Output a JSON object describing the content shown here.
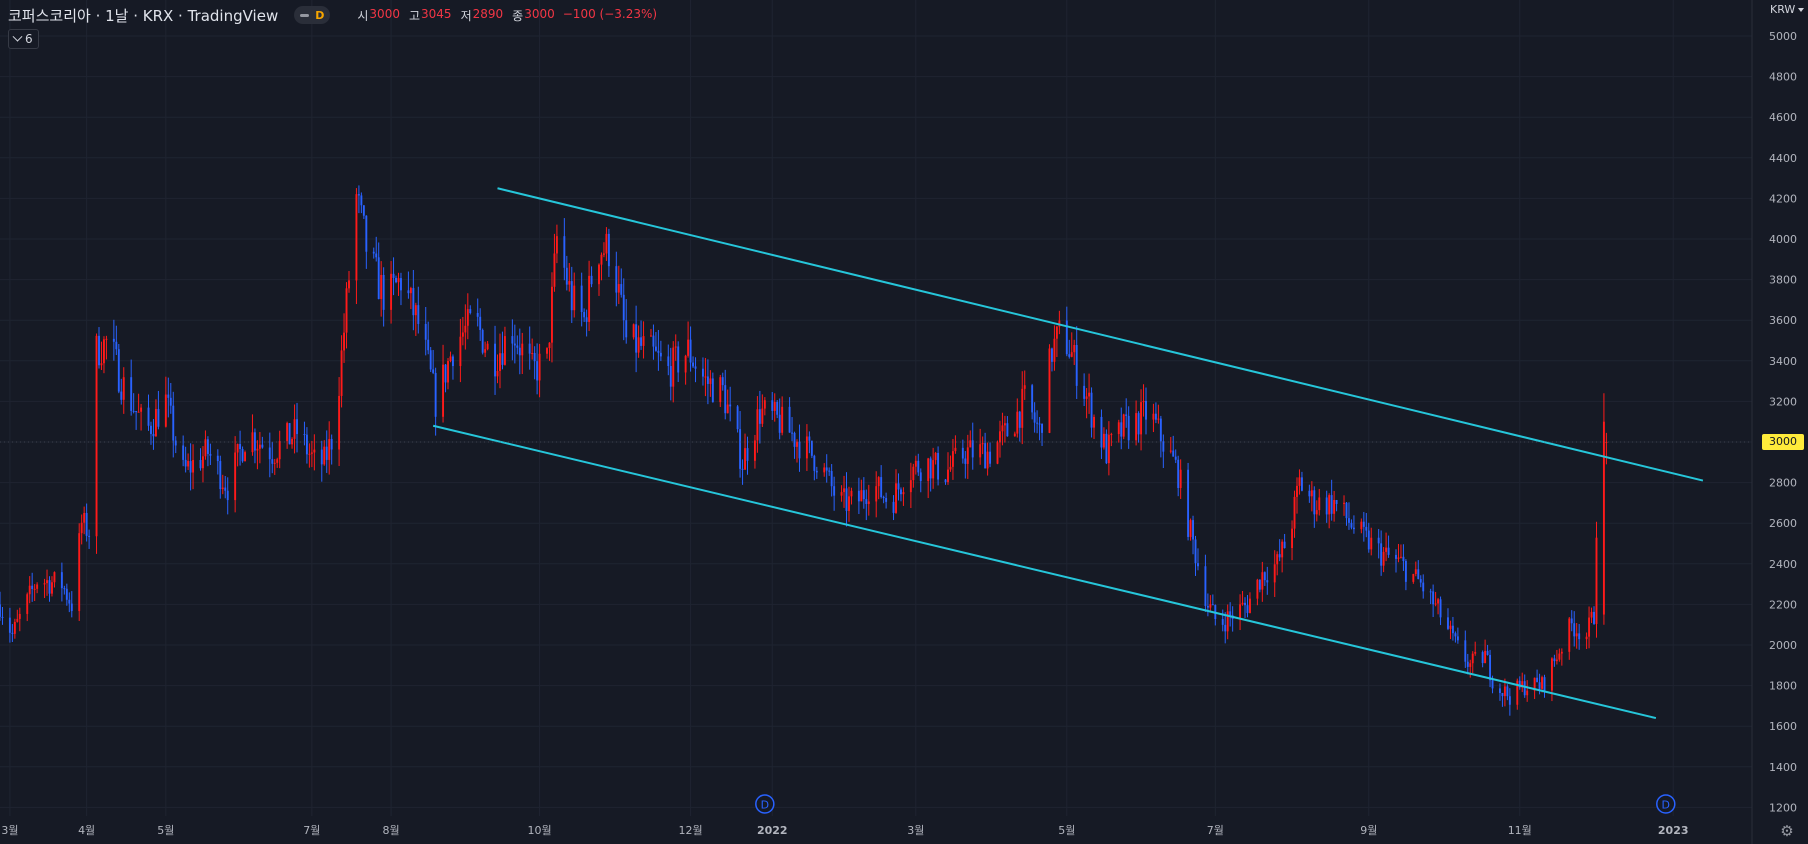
{
  "header": {
    "title": "코퍼스코리아 · 1날 · KRX · TradingView",
    "interval_badge": "D",
    "ohlc": {
      "open_label": "시",
      "open": "3000",
      "high_label": "고",
      "high": "3045",
      "low_label": "저",
      "low": "2890",
      "close_label": "종",
      "close": "3000",
      "change": "−100 (−3.23%)"
    }
  },
  "indicators_button": {
    "label": "6"
  },
  "axis": {
    "currency": "KRW",
    "last_price_label": "3000"
  },
  "colors": {
    "background": "#161a25",
    "grid": "#1f2431",
    "up_candle": "#ff1a1a",
    "down_candle": "#2962ff",
    "channel_line": "#26c6da",
    "last_price": "#ffeb3b"
  },
  "chart_data": {
    "type": "candlestick",
    "title": "코퍼스코리아 · 1날 · KRX · TradingView",
    "xlabel": "",
    "ylabel": "",
    "ylim": [
      1150,
      5050
    ],
    "y_ticks": [
      1200,
      1400,
      1600,
      1800,
      2000,
      2200,
      2400,
      2600,
      2800,
      3000,
      3200,
      3400,
      3600,
      3800,
      4000,
      4200,
      4400,
      4600,
      4800,
      5000
    ],
    "x_ticks": [
      {
        "label": "3월",
        "date": "2021-03-01"
      },
      {
        "label": "4월",
        "date": "2021-04-01"
      },
      {
        "label": "5월",
        "date": "2021-05-03"
      },
      {
        "label": "7월",
        "date": "2021-07-01"
      },
      {
        "label": "8월",
        "date": "2021-08-02"
      },
      {
        "label": "10월",
        "date": "2021-10-01"
      },
      {
        "label": "12월",
        "date": "2021-12-01"
      },
      {
        "label": "2022",
        "date": "2022-01-03"
      },
      {
        "label": "3월",
        "date": "2022-03-02"
      },
      {
        "label": "5월",
        "date": "2022-05-02"
      },
      {
        "label": "7월",
        "date": "2022-07-01"
      },
      {
        "label": "9월",
        "date": "2022-09-01"
      },
      {
        "label": "11월",
        "date": "2022-11-01"
      },
      {
        "label": "2023",
        "date": "2023-01-02"
      }
    ],
    "x_range": [
      "2021-02-25",
      "2023-01-31"
    ],
    "dividend_markers": [
      {
        "label": "D",
        "date": "2021-12-31"
      },
      {
        "label": "D",
        "date": "2022-12-30"
      }
    ],
    "channel_lines": [
      {
        "name": "",
        "from": {
          "date": "2021-09-14",
          "price": 4250
        },
        "to": {
          "date": "2023-01-14",
          "price": 2810
        }
      },
      {
        "name": "",
        "from": {
          "date": "2021-08-19",
          "price": 3080
        },
        "to": {
          "date": "2022-12-26",
          "price": 1640
        }
      }
    ],
    "price_path": [
      [
        "2021-02-25",
        2200
      ],
      [
        "2021-03-02",
        2050
      ],
      [
        "2021-03-12",
        2320
      ],
      [
        "2021-03-22",
        2300
      ],
      [
        "2021-03-26",
        2200
      ],
      [
        "2021-03-30",
        2600
      ],
      [
        "2021-04-02",
        2560
      ],
      [
        "2021-04-05",
        3450
      ],
      [
        "2021-04-10",
        3500
      ],
      [
        "2021-04-15",
        3300
      ],
      [
        "2021-04-25",
        3050
      ],
      [
        "2021-05-03",
        3200
      ],
      [
        "2021-05-10",
        2850
      ],
      [
        "2021-05-20",
        2950
      ],
      [
        "2021-05-28",
        2780
      ],
      [
        "2021-06-05",
        3050
      ],
      [
        "2021-06-15",
        2950
      ],
      [
        "2021-06-25",
        3050
      ],
      [
        "2021-07-02",
        2900
      ],
      [
        "2021-07-06",
        2900
      ],
      [
        "2021-07-10",
        3050
      ],
      [
        "2021-07-14",
        3550
      ],
      [
        "2021-07-19",
        4200
      ],
      [
        "2021-07-24",
        3900
      ],
      [
        "2021-07-31",
        3700
      ],
      [
        "2021-08-06",
        3800
      ],
      [
        "2021-08-14",
        3550
      ],
      [
        "2021-08-20",
        3200
      ],
      [
        "2021-08-28",
        3500
      ],
      [
        "2021-09-05",
        3600
      ],
      [
        "2021-09-12",
        3400
      ],
      [
        "2021-09-20",
        3550
      ],
      [
        "2021-09-28",
        3350
      ],
      [
        "2021-10-04",
        3400
      ],
      [
        "2021-10-08",
        4000
      ],
      [
        "2021-10-14",
        3700
      ],
      [
        "2021-10-19",
        3600
      ],
      [
        "2021-10-24",
        3950
      ],
      [
        "2021-10-30",
        3950
      ],
      [
        "2021-11-05",
        3500
      ],
      [
        "2021-11-14",
        3450
      ],
      [
        "2021-11-22",
        3350
      ],
      [
        "2021-11-30",
        3450
      ],
      [
        "2021-12-07",
        3300
      ],
      [
        "2021-12-14",
        3250
      ],
      [
        "2021-12-22",
        2900
      ],
      [
        "2021-12-29",
        3150
      ],
      [
        "2022-01-06",
        3100
      ],
      [
        "2022-01-14",
        3000
      ],
      [
        "2022-01-22",
        2900
      ],
      [
        "2022-01-30",
        2700
      ],
      [
        "2022-02-06",
        2700
      ],
      [
        "2022-02-12",
        2800
      ],
      [
        "2022-02-20",
        2700
      ],
      [
        "2022-02-26",
        2850
      ],
      [
        "2022-03-06",
        2900
      ],
      [
        "2022-03-14",
        2850
      ],
      [
        "2022-03-22",
        2950
      ],
      [
        "2022-04-01",
        2950
      ],
      [
        "2022-04-08",
        3050
      ],
      [
        "2022-04-15",
        3200
      ],
      [
        "2022-04-21",
        3050
      ],
      [
        "2022-04-26",
        3450
      ],
      [
        "2022-04-30",
        3550
      ],
      [
        "2022-05-05",
        3400
      ],
      [
        "2022-05-12",
        3150
      ],
      [
        "2022-05-18",
        2950
      ],
      [
        "2022-05-24",
        3050
      ],
      [
        "2022-05-30",
        3100
      ],
      [
        "2022-06-04",
        3150
      ],
      [
        "2022-06-10",
        3000
      ],
      [
        "2022-06-16",
        2850
      ],
      [
        "2022-06-20",
        2600
      ],
      [
        "2022-06-24",
        2400
      ],
      [
        "2022-06-28",
        2200
      ],
      [
        "2022-07-02",
        2100
      ],
      [
        "2022-07-08",
        2150
      ],
      [
        "2022-07-14",
        2200
      ],
      [
        "2022-07-20",
        2350
      ],
      [
        "2022-07-26",
        2400
      ],
      [
        "2022-07-31",
        2550
      ],
      [
        "2022-08-04",
        2800
      ],
      [
        "2022-08-10",
        2700
      ],
      [
        "2022-08-18",
        2700
      ],
      [
        "2022-08-28",
        2550
      ],
      [
        "2022-09-06",
        2450
      ],
      [
        "2022-09-14",
        2400
      ],
      [
        "2022-09-22",
        2300
      ],
      [
        "2022-09-30",
        2150
      ],
      [
        "2022-10-06",
        2000
      ],
      [
        "2022-10-12",
        1900
      ],
      [
        "2022-10-18",
        1950
      ],
      [
        "2022-10-22",
        1800
      ],
      [
        "2022-10-28",
        1750
      ],
      [
        "2022-11-03",
        1800
      ],
      [
        "2022-11-10",
        1800
      ],
      [
        "2022-11-16",
        1950
      ],
      [
        "2022-11-22",
        2100
      ],
      [
        "2022-11-28",
        2050
      ],
      [
        "2022-12-01",
        2150
      ],
      [
        "2022-12-03",
        3050
      ],
      [
        "2022-12-06",
        3050
      ]
    ],
    "last_candle": {
      "date": "2022-12-06",
      "open": 3000,
      "high": 3045,
      "low": 2890,
      "close": 3000
    }
  }
}
